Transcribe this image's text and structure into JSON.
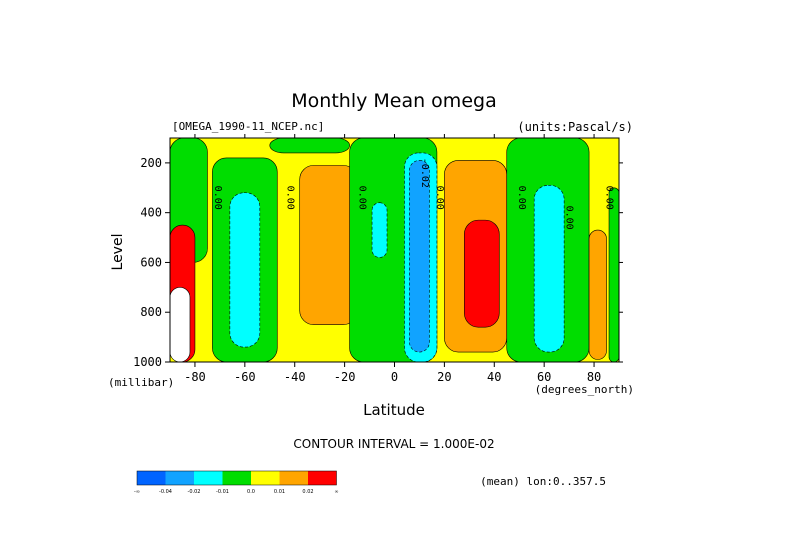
{
  "figure": {
    "title": "Monthly Mean omega",
    "file_label": "[OMEGA_1990-11_NCEP.nc]",
    "units_label": "(units:Pascal/s)",
    "contour_interval": "CONTOUR INTERVAL = 1.000E-02",
    "mean_note": "(mean) lon:0..357.5"
  },
  "chart_data": {
    "type": "heatmap",
    "title": "Monthly Mean omega",
    "xlabel": "Latitude",
    "x_unit": "(degrees_north)",
    "ylabel": "Level",
    "y_unit": "(millibar)",
    "xlim": [
      -90,
      90
    ],
    "ylim": [
      1000,
      100
    ],
    "y_inverted": true,
    "x_ticks": [
      -80,
      -60,
      -40,
      -20,
      0,
      20,
      40,
      60,
      80
    ],
    "y_ticks": [
      200,
      400,
      600,
      800,
      1000
    ],
    "contour_interval": 0.01,
    "contour_labels": [
      {
        "lat": -72,
        "lev": 340,
        "text": "0.00"
      },
      {
        "lat": -43,
        "lev": 340,
        "text": "0.00"
      },
      {
        "lat": -14,
        "lev": 340,
        "text": "0.00"
      },
      {
        "lat": 11,
        "lev": 240,
        "text": "-0.02"
      },
      {
        "lat": 17,
        "lev": 340,
        "text": "0.00"
      },
      {
        "lat": 50,
        "lev": 340,
        "text": "0.00"
      },
      {
        "lat": 69,
        "lev": 420,
        "text": "0.00"
      },
      {
        "lat": 85,
        "lev": 340,
        "text": "0.00"
      }
    ],
    "colorbar": {
      "bins": [
        {
          "label": "-∞",
          "color": "#0064ff"
        },
        {
          "label": "-0.04",
          "color": "#11a3ff"
        },
        {
          "label": "-0.02",
          "color": "#00ffff"
        },
        {
          "label": "-0.01",
          "color": "#00dd00"
        },
        {
          "label": "0.0",
          "color": "#ffff00"
        },
        {
          "label": "0.01",
          "color": "#ffa500"
        },
        {
          "label": "0.02",
          "color": "#ff0000"
        },
        {
          "label": "∞",
          "color": "#000000"
        }
      ]
    },
    "regions": [
      {
        "name": "base",
        "color": "#ffff00",
        "note": "background 0.00 to 0.01 Pa/s"
      },
      {
        "name": "green-south-polar",
        "color": "#00dd00",
        "lat": [
          -90,
          -75
        ],
        "lev": [
          100,
          600
        ]
      },
      {
        "name": "green-60S",
        "color": "#00dd00",
        "lat": [
          -73,
          -47
        ],
        "lev": [
          180,
          1000
        ]
      },
      {
        "name": "cyan-60S",
        "color": "#00ffff",
        "lat": [
          -66,
          -54
        ],
        "lev": [
          320,
          940
        ]
      },
      {
        "name": "green-30S-top",
        "color": "#00dd00",
        "lat": [
          -50,
          -18
        ],
        "lev": [
          100,
          160
        ]
      },
      {
        "name": "orange-30S",
        "color": "#ffa500",
        "lat": [
          -38,
          -15
        ],
        "lev": [
          210,
          850
        ]
      },
      {
        "name": "green-equatorial",
        "color": "#00dd00",
        "lat": [
          -18,
          17
        ],
        "lev": [
          100,
          1000
        ]
      },
      {
        "name": "cyan-5S",
        "color": "#00ffff",
        "lat": [
          -9,
          -3
        ],
        "lev": [
          360,
          580
        ]
      },
      {
        "name": "cyan-10N",
        "color": "#00ffff",
        "lat": [
          4,
          17
        ],
        "lev": [
          160,
          1000
        ]
      },
      {
        "name": "blue-10N",
        "color": "#11a3ff",
        "lat": [
          6,
          14
        ],
        "lev": [
          190,
          960
        ]
      },
      {
        "name": "orange-30N",
        "color": "#ffa500",
        "lat": [
          20,
          45
        ],
        "lev": [
          190,
          960
        ]
      },
      {
        "name": "red-30N-cells",
        "color": "#ff0000",
        "lat": [
          28,
          42
        ],
        "lev": [
          430,
          860
        ]
      },
      {
        "name": "green-60N",
        "color": "#00dd00",
        "lat": [
          45,
          78
        ],
        "lev": [
          100,
          1000
        ]
      },
      {
        "name": "cyan-60N",
        "color": "#00ffff",
        "lat": [
          56,
          68
        ],
        "lev": [
          290,
          960
        ]
      },
      {
        "name": "orange-80N",
        "color": "#ffa500",
        "lat": [
          78,
          85
        ],
        "lev": [
          470,
          990
        ]
      },
      {
        "name": "green-90N-edge",
        "color": "#00dd00",
        "lat": [
          86,
          90
        ],
        "lev": [
          300,
          1000
        ]
      },
      {
        "name": "antarctic-high-omega",
        "color": "#ff0000",
        "lat": [
          -90,
          -80
        ],
        "lev": [
          450,
          1000
        ]
      },
      {
        "name": "antarctic-topography",
        "color": "#ffffff",
        "lat": [
          -90,
          -82
        ],
        "lev": [
          700,
          1000
        ]
      }
    ]
  }
}
